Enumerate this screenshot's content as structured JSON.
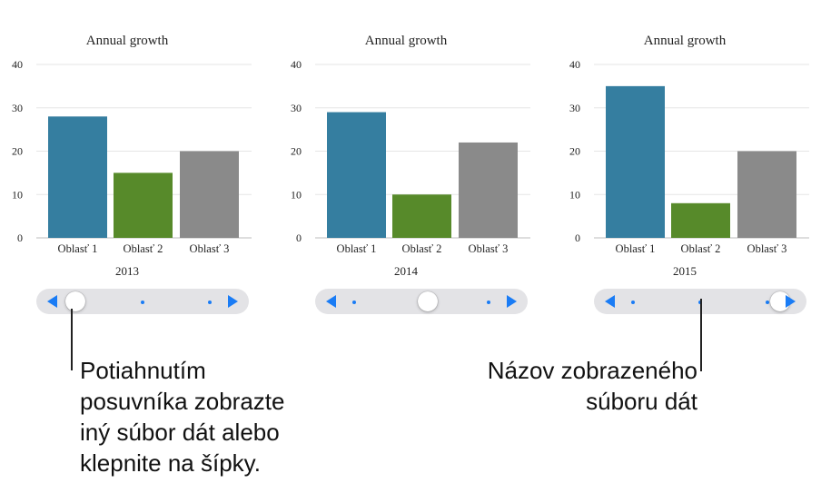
{
  "chart_data": [
    {
      "type": "bar",
      "title": "Annual growth",
      "categories": [
        "Oblasť 1",
        "Oblasť 2",
        "Oblasť 3"
      ],
      "values": [
        28,
        15,
        20
      ],
      "xlabel": "2013",
      "ylim": [
        0,
        40
      ],
      "yticks": [
        "0",
        "10",
        "20",
        "30",
        "40"
      ],
      "colors": [
        "#357ea0",
        "#578a2a",
        "#8a8a8a"
      ],
      "grid": true,
      "slider_position": 0
    },
    {
      "type": "bar",
      "title": "Annual growth",
      "categories": [
        "Oblasť 1",
        "Oblasť 2",
        "Oblasť 3"
      ],
      "values": [
        29,
        10,
        22
      ],
      "xlabel": "2014",
      "ylim": [
        0,
        40
      ],
      "yticks": [
        "0",
        "10",
        "20",
        "30",
        "40"
      ],
      "colors": [
        "#357ea0",
        "#578a2a",
        "#8a8a8a"
      ],
      "grid": true,
      "slider_position": 1
    },
    {
      "type": "bar",
      "title": "Annual growth",
      "categories": [
        "Oblasť 1",
        "Oblasť 2",
        "Oblasť 3"
      ],
      "values": [
        35,
        8,
        20
      ],
      "xlabel": "2015",
      "ylim": [
        0,
        40
      ],
      "yticks": [
        "0",
        "10",
        "20",
        "30",
        "40"
      ],
      "colors": [
        "#357ea0",
        "#578a2a",
        "#8a8a8a"
      ],
      "grid": true,
      "slider_position": 2
    }
  ],
  "callouts": {
    "slider_text": "Potiahnutím\nposuvníka zobrazte\niný súbor dát alebo\nklepnite na šípky.",
    "dataset_text": "Názov zobrazeného\nsúboru dát"
  },
  "colors": {
    "accent": "#1a7cf5",
    "slider_track": "#e3e3e6"
  }
}
